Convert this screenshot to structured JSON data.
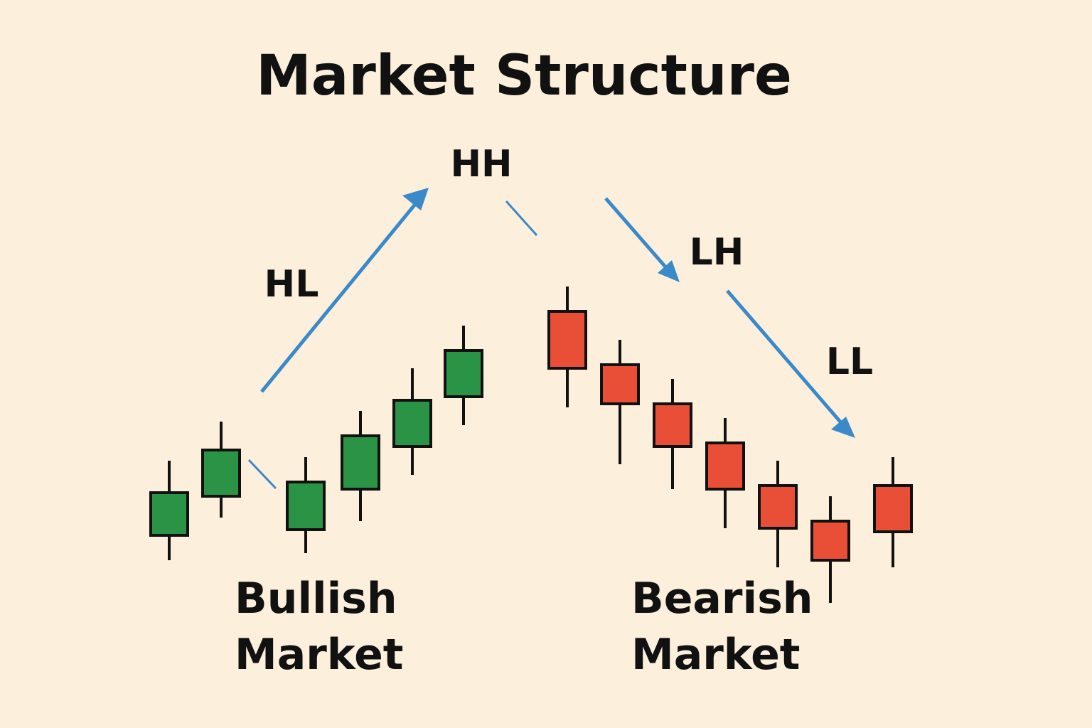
{
  "title": "Market Structure",
  "swing_labels": {
    "hl": "HL",
    "hh": "HH",
    "lh": "LH",
    "ll": "LL"
  },
  "captions": {
    "bullish_line1": "Bullish",
    "bullish_line2": "Market",
    "bearish_line1": "Bearish",
    "bearish_line2": "Market"
  },
  "colors": {
    "background": "#fcf0dc",
    "bullish": "#2a9346",
    "bearish": "#e94e36",
    "arrow": "#3a89c9",
    "outline": "#111111"
  },
  "candles": [
    {
      "dir": "bull",
      "open": 230,
      "close": 290,
      "high": 335,
      "low": 195
    },
    {
      "dir": "bull",
      "open": 285,
      "close": 350,
      "high": 390,
      "low": 255
    },
    {
      "dir": "bull",
      "open": 238,
      "close": 305,
      "high": 340,
      "low": 205
    },
    {
      "dir": "bull",
      "open": 295,
      "close": 370,
      "high": 405,
      "low": 250
    },
    {
      "dir": "bull",
      "open": 355,
      "close": 420,
      "high": 465,
      "low": 315
    },
    {
      "dir": "bull",
      "open": 425,
      "close": 490,
      "high": 525,
      "low": 385
    },
    {
      "dir": "bear",
      "open": 545,
      "close": 465,
      "high": 580,
      "low": 410
    },
    {
      "dir": "bear",
      "open": 470,
      "close": 415,
      "high": 505,
      "low": 330
    },
    {
      "dir": "bear",
      "open": 415,
      "close": 355,
      "high": 450,
      "low": 295
    },
    {
      "dir": "bear",
      "open": 360,
      "close": 295,
      "high": 395,
      "low": 240
    },
    {
      "dir": "bear",
      "open": 300,
      "close": 240,
      "high": 335,
      "low": 185
    },
    {
      "dir": "bear",
      "open": 250,
      "close": 195,
      "high": 285,
      "low": 135
    },
    {
      "dir": "bear",
      "open": 300,
      "close": 235,
      "high": 340,
      "low": 185
    }
  ]
}
